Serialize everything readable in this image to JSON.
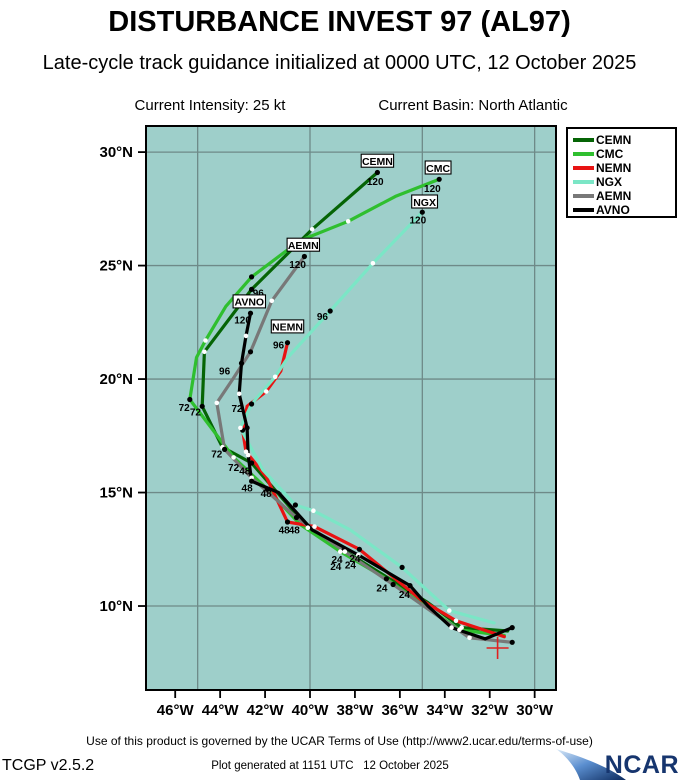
{
  "header": {
    "title": "DISTURBANCE INVEST 97 (AL97)",
    "subtitle": "Late-cycle track guidance initialized at 0000 UTC, 12 October 2025",
    "current_intensity": "Current Intensity: 25 kt",
    "current_basin": "Current Basin: North Atlantic"
  },
  "footer": {
    "terms": "Use of this product is governed by the UCAR Terms of Use (http://www2.ucar.edu/terms-of-use)",
    "app_version": "TCGP v2.5.2",
    "generated": "Plot generated at 1151 UTC   12 October 2025",
    "logo_text": "NCAR"
  },
  "chart_data": {
    "type": "line",
    "map_background": "#9ECFCA",
    "grid_color": "#6E8A88",
    "frame_color": "#000000",
    "extent": {
      "lon_west": 47.3,
      "lon_east": 29.05,
      "lat_top": 31.15,
      "lat_bottom": 6.3
    },
    "grid_lons": [
      45,
      40,
      35,
      30
    ],
    "grid_lats": [
      30,
      25,
      20,
      15,
      10
    ],
    "x_ticks": [
      46,
      44,
      42,
      40,
      38,
      36,
      34,
      32,
      30
    ],
    "x_tick_labels": [
      "46°W",
      "44°W",
      "42°W",
      "40°W",
      "38°W",
      "36°W",
      "34°W",
      "32°W",
      "30°W"
    ],
    "y_ticks": [
      30,
      25,
      20,
      15,
      10
    ],
    "y_tick_labels": [
      "30°N",
      "25°N",
      "20°N",
      "15°N",
      "10°N"
    ],
    "start_position": {
      "lon_w": 31.65,
      "lat_n": 8.15,
      "marker": "red-cross",
      "color": "#e02020"
    },
    "legend": [
      {
        "name": "CEMN",
        "color": "#056405"
      },
      {
        "name": "CMC",
        "color": "#2fbf2f"
      },
      {
        "name": "NEMN",
        "color": "#e81313"
      },
      {
        "name": "NGX",
        "color": "#7be6c6"
      },
      {
        "name": "AEMN",
        "color": "#787878"
      },
      {
        "name": "AVNO",
        "color": "#000000"
      }
    ],
    "series": [
      {
        "name": "CEMN",
        "color": "#056405",
        "label_box": {
          "lon_w": 37.0,
          "lat_n": 29.6
        },
        "points": [
          [
            31.2,
            8.9
          ],
          [
            33.25,
            9.05
          ],
          [
            34.75,
            10.15
          ],
          [
            38.5,
            12.45
          ],
          [
            40.1,
            13.45
          ],
          [
            42.6,
            16.3
          ],
          [
            43.9,
            17.0
          ],
          [
            44.8,
            18.8
          ],
          [
            44.7,
            21.2
          ],
          [
            42.6,
            23.95
          ],
          [
            39.9,
            26.6
          ],
          [
            37.0,
            29.1
          ]
        ],
        "markers": [
          {
            "i": 1,
            "c": "white"
          },
          {
            "i": 3,
            "c": "black"
          },
          {
            "i": 4,
            "c": "white"
          },
          {
            "i": 5,
            "c": "black"
          },
          {
            "i": 6,
            "c": "white"
          },
          {
            "i": 7,
            "c": "black"
          },
          {
            "i": 8,
            "c": "white"
          },
          {
            "i": 9,
            "c": "black"
          },
          {
            "i": 10,
            "c": "white"
          },
          {
            "i": 11,
            "c": "black"
          }
        ]
      },
      {
        "name": "CMC",
        "color": "#2fbf2f",
        "label_box": {
          "lon_w": 34.3,
          "lat_n": 29.3
        },
        "points": [
          [
            31.35,
            8.7
          ],
          [
            33.35,
            8.95
          ],
          [
            35.1,
            10.15
          ],
          [
            36.6,
            11.2
          ],
          [
            38.65,
            12.4
          ],
          [
            40.45,
            13.6
          ],
          [
            41.9,
            15.15
          ],
          [
            43.4,
            16.55
          ],
          [
            45.35,
            19.1
          ],
          [
            45.05,
            20.95
          ],
          [
            44.65,
            21.7
          ],
          [
            43.75,
            23.2
          ],
          [
            42.6,
            24.5
          ],
          [
            40.45,
            26.1
          ],
          [
            38.3,
            26.95
          ],
          [
            36.2,
            28.05
          ],
          [
            34.25,
            28.8
          ]
        ],
        "markers": [
          {
            "i": 1,
            "c": "white"
          },
          {
            "i": 3,
            "c": "black"
          },
          {
            "i": 4,
            "c": "white"
          },
          {
            "i": 6,
            "c": "black"
          },
          {
            "i": 7,
            "c": "white"
          },
          {
            "i": 8,
            "c": "black"
          },
          {
            "i": 10,
            "c": "white"
          },
          {
            "i": 12,
            "c": "black"
          },
          {
            "i": 14,
            "c": "white"
          },
          {
            "i": 16,
            "c": "black"
          }
        ]
      },
      {
        "name": "NEMN",
        "color": "#e81313",
        "label_box": {
          "lon_w": 41.0,
          "lat_n": 22.3
        },
        "points": [
          [
            31.35,
            8.65
          ],
          [
            33.5,
            9.35
          ],
          [
            35.1,
            10.3
          ],
          [
            37.8,
            12.5
          ],
          [
            39.8,
            13.5
          ],
          [
            41.0,
            13.7
          ],
          [
            41.95,
            15.7
          ],
          [
            42.85,
            16.8
          ],
          [
            43.0,
            17.75
          ],
          [
            42.8,
            18.8
          ],
          [
            41.95,
            19.45
          ],
          [
            41.3,
            20.35
          ],
          [
            41.0,
            21.6
          ]
        ],
        "markers": [
          {
            "i": 1,
            "c": "white"
          },
          {
            "i": 3,
            "c": "black"
          },
          {
            "i": 4,
            "c": "white"
          },
          {
            "i": 5,
            "c": "black"
          },
          {
            "i": 7,
            "c": "white"
          },
          {
            "i": 8,
            "c": "black"
          },
          {
            "i": 10,
            "c": "white"
          },
          {
            "i": 12,
            "c": "black"
          }
        ]
      },
      {
        "name": "NGX",
        "color": "#7be6c6",
        "label_box": {
          "lon_w": 34.9,
          "lat_n": 27.8
        },
        "points": [
          [
            31.8,
            9.25
          ],
          [
            33.8,
            9.8
          ],
          [
            35.9,
            11.7
          ],
          [
            38.2,
            13.35
          ],
          [
            39.85,
            14.2
          ],
          [
            40.65,
            14.45
          ],
          [
            42.1,
            16.0
          ],
          [
            43.1,
            17.85
          ],
          [
            42.6,
            18.9
          ],
          [
            41.55,
            20.1
          ],
          [
            40.95,
            21.0
          ],
          [
            39.1,
            23.0
          ],
          [
            37.2,
            25.1
          ],
          [
            35.0,
            27.35
          ]
        ],
        "markers": [
          {
            "i": 1,
            "c": "white"
          },
          {
            "i": 2,
            "c": "black"
          },
          {
            "i": 4,
            "c": "white"
          },
          {
            "i": 5,
            "c": "black"
          },
          {
            "i": 7,
            "c": "white"
          },
          {
            "i": 8,
            "c": "black"
          },
          {
            "i": 9,
            "c": "white"
          },
          {
            "i": 11,
            "c": "black"
          },
          {
            "i": 12,
            "c": "white"
          },
          {
            "i": 13,
            "c": "black"
          }
        ]
      },
      {
        "name": "AEMN",
        "color": "#787878",
        "label_box": {
          "lon_w": 40.3,
          "lat_n": 25.9
        },
        "points": [
          [
            31.0,
            8.4
          ],
          [
            32.9,
            8.6
          ],
          [
            34.65,
            9.8
          ],
          [
            36.3,
            10.95
          ],
          [
            38.45,
            12.4
          ],
          [
            40.6,
            13.9
          ],
          [
            42.6,
            15.65
          ],
          [
            43.8,
            16.9
          ],
          [
            44.15,
            18.95
          ],
          [
            43.4,
            20.05
          ],
          [
            42.65,
            21.2
          ],
          [
            41.7,
            23.45
          ],
          [
            40.25,
            25.4
          ]
        ],
        "markers": [
          {
            "i": 0,
            "c": "black"
          },
          {
            "i": 1,
            "c": "white"
          },
          {
            "i": 3,
            "c": "black"
          },
          {
            "i": 4,
            "c": "white"
          },
          {
            "i": 5,
            "c": "black"
          },
          {
            "i": 6,
            "c": "white"
          },
          {
            "i": 7,
            "c": "black"
          },
          {
            "i": 8,
            "c": "white"
          },
          {
            "i": 10,
            "c": "black"
          },
          {
            "i": 11,
            "c": "white"
          },
          {
            "i": 12,
            "c": "black"
          }
        ]
      },
      {
        "name": "AVNO",
        "color": "#000000",
        "label_box": {
          "lon_w": 42.7,
          "lat_n": 23.4
        },
        "points": [
          [
            31.0,
            9.05
          ],
          [
            32.2,
            8.55
          ],
          [
            33.7,
            9.05
          ],
          [
            34.75,
            10.0
          ],
          [
            35.55,
            10.9
          ],
          [
            37.85,
            12.25
          ],
          [
            39.9,
            13.35
          ],
          [
            41.4,
            15.0
          ],
          [
            42.6,
            15.5
          ],
          [
            42.75,
            16.65
          ],
          [
            42.8,
            17.85
          ],
          [
            43.15,
            19.35
          ],
          [
            43.05,
            20.7
          ],
          [
            42.85,
            21.9
          ],
          [
            42.65,
            22.9
          ]
        ],
        "markers": [
          {
            "i": 0,
            "c": "black"
          },
          {
            "i": 2,
            "c": "white"
          },
          {
            "i": 4,
            "c": "black"
          },
          {
            "i": 5,
            "c": "white"
          },
          {
            "i": 8,
            "c": "black"
          },
          {
            "i": 9,
            "c": "white"
          },
          {
            "i": 10,
            "c": "black"
          },
          {
            "i": 11,
            "c": "white"
          },
          {
            "i": 12,
            "c": "black"
          },
          {
            "i": 13,
            "c": "white"
          },
          {
            "i": 14,
            "c": "black"
          }
        ]
      }
    ],
    "hour_labels": [
      {
        "t": "120",
        "lon_w": 37.1,
        "lat_n": 28.7
      },
      {
        "t": "120",
        "lon_w": 34.55,
        "lat_n": 28.4
      },
      {
        "t": "120",
        "lon_w": 35.2,
        "lat_n": 27.0
      },
      {
        "t": "120",
        "lon_w": 40.55,
        "lat_n": 25.05
      },
      {
        "t": "120",
        "lon_w": 43.0,
        "lat_n": 22.6
      },
      {
        "t": "96",
        "lon_w": 42.3,
        "lat_n": 23.8
      },
      {
        "t": "96",
        "lon_w": 39.45,
        "lat_n": 22.75
      },
      {
        "t": "96",
        "lon_w": 41.4,
        "lat_n": 21.5
      },
      {
        "t": "96",
        "lon_w": 43.8,
        "lat_n": 20.35
      },
      {
        "t": "72",
        "lon_w": 45.6,
        "lat_n": 18.75
      },
      {
        "t": "72",
        "lon_w": 45.1,
        "lat_n": 18.55
      },
      {
        "t": "72",
        "lon_w": 44.15,
        "lat_n": 16.7
      },
      {
        "t": "72",
        "lon_w": 43.4,
        "lat_n": 16.1
      },
      {
        "t": "72",
        "lon_w": 43.25,
        "lat_n": 18.7
      },
      {
        "t": "48",
        "lon_w": 42.9,
        "lat_n": 15.95
      },
      {
        "t": "48",
        "lon_w": 42.8,
        "lat_n": 15.2
      },
      {
        "t": "48",
        "lon_w": 41.95,
        "lat_n": 14.95
      },
      {
        "t": "48",
        "lon_w": 41.15,
        "lat_n": 13.35
      },
      {
        "t": "48",
        "lon_w": 40.7,
        "lat_n": 13.35
      },
      {
        "t": "24",
        "lon_w": 38.8,
        "lat_n": 12.05
      },
      {
        "t": "24",
        "lon_w": 38.85,
        "lat_n": 11.75
      },
      {
        "t": "24",
        "lon_w": 38.2,
        "lat_n": 11.8
      },
      {
        "t": "24",
        "lon_w": 38.0,
        "lat_n": 12.1
      },
      {
        "t": "24",
        "lon_w": 36.8,
        "lat_n": 10.8
      },
      {
        "t": "24",
        "lon_w": 35.8,
        "lat_n": 10.5
      }
    ]
  }
}
